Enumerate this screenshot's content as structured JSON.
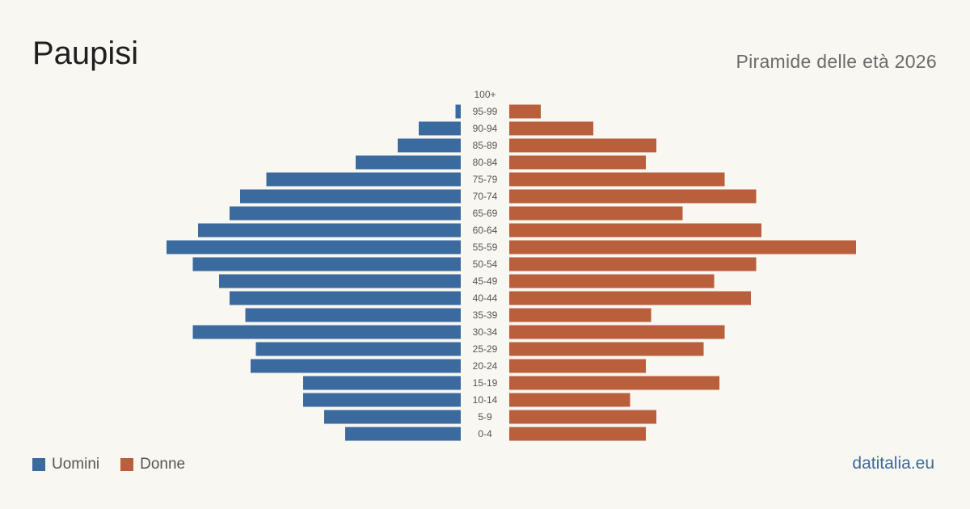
{
  "header": {
    "title": "Paupisi",
    "subtitle": "Piramide delle età 2026"
  },
  "legend": {
    "men_label": "Uomini",
    "women_label": "Donne"
  },
  "footer": {
    "source": "datitalia.eu"
  },
  "colors": {
    "men": "#3b6b9e",
    "women": "#b95f3c",
    "background": "#f9f7f2"
  },
  "chart_data": {
    "type": "bar",
    "orientation": "horizontal-pyramid",
    "title": "Paupisi",
    "subtitle": "Piramide delle età 2026",
    "categories": [
      "100+",
      "95-99",
      "90-94",
      "85-89",
      "80-84",
      "75-79",
      "70-74",
      "65-69",
      "60-64",
      "55-59",
      "50-54",
      "45-49",
      "40-44",
      "35-39",
      "30-34",
      "25-29",
      "20-24",
      "15-19",
      "10-14",
      "5-9",
      "0-4"
    ],
    "series": [
      {
        "name": "Uomini",
        "values": [
          0,
          1,
          8,
          12,
          20,
          37,
          42,
          44,
          50,
          56,
          51,
          46,
          44,
          41,
          51,
          39,
          40,
          30,
          30,
          26,
          22
        ]
      },
      {
        "name": "Donne",
        "values": [
          0,
          6,
          16,
          28,
          26,
          41,
          47,
          33,
          48,
          66,
          47,
          39,
          46,
          27,
          41,
          37,
          26,
          40,
          23,
          28,
          26
        ]
      }
    ],
    "legend_position": "bottom-left",
    "grid": false
  }
}
